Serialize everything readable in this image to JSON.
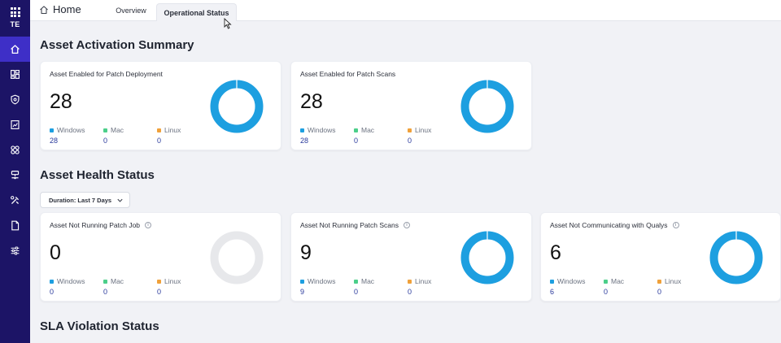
{
  "sidebar": {
    "app_code": "TE",
    "items": [
      {
        "icon": "home-icon",
        "active": true
      },
      {
        "icon": "dashboard-icon",
        "active": false
      },
      {
        "icon": "shield-icon",
        "active": false
      },
      {
        "icon": "report-icon",
        "active": false
      },
      {
        "icon": "patch-icon",
        "active": false
      },
      {
        "icon": "network-icon",
        "active": false
      },
      {
        "icon": "tools-icon",
        "active": false
      },
      {
        "icon": "document-icon",
        "active": false
      },
      {
        "icon": "sliders-icon",
        "active": false
      }
    ]
  },
  "topbar": {
    "home_label": "Home",
    "tabs": [
      {
        "label": "Overview",
        "active": false
      },
      {
        "label": "Operational Status",
        "active": true
      }
    ]
  },
  "sections": {
    "activation_title": "Asset Activation Summary",
    "health_title": "Asset Health Status",
    "sla_title": "SLA Violation Status"
  },
  "duration_dropdown": {
    "label": "Duration: Last 7 Days"
  },
  "legend_names": {
    "windows": "Windows",
    "mac": "Mac",
    "linux": "Linux"
  },
  "colors": {
    "windows": "#1d9fe0",
    "mac": "#4ccf8a",
    "linux": "#f0a13a",
    "empty_ring": "#e7e8eb",
    "sidebar": "#1c1466",
    "sidebar_active": "#3e2fc7"
  },
  "cards": [
    {
      "title": "Asset Enabled for Patch Deployment",
      "value": "28",
      "windows": "28",
      "mac": "0",
      "linux": "0",
      "info": false
    },
    {
      "title": "Asset Enabled for Patch Scans",
      "value": "28",
      "windows": "28",
      "mac": "0",
      "linux": "0",
      "info": false
    },
    {
      "title": "Asset Not Running Patch Job",
      "value": "0",
      "windows": "0",
      "mac": "0",
      "linux": "0",
      "info": true
    },
    {
      "title": "Asset Not Running Patch Scans",
      "value": "9",
      "windows": "9",
      "mac": "0",
      "linux": "0",
      "info": true
    },
    {
      "title": "Asset Not Communicating with Qualys",
      "value": "6",
      "windows": "6",
      "mac": "0",
      "linux": "0",
      "info": true
    }
  ]
}
